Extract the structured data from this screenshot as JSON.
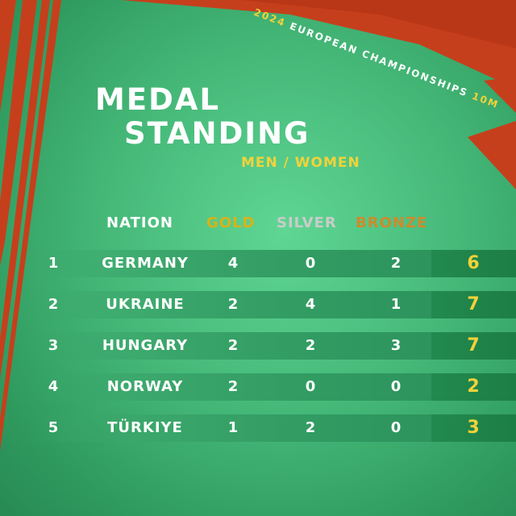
{
  "header": {
    "event": "2024 EUROPEAN CHAMPIONSHIPS",
    "event_year": "2024",
    "event_name": "EUROPEAN CHAMPIONSHIPS",
    "event_discipline": "10M",
    "title_line1": "MEDAL",
    "title_line2": "STANDING",
    "subtitle": "MEN / WOMEN"
  },
  "table": {
    "columns": {
      "nation": "NATION",
      "gold": "GOLD",
      "silver": "SILVER",
      "bronze": "BRONZE"
    },
    "rows": [
      {
        "rank": "1",
        "nation": "GERMANY",
        "gold": "4",
        "silver": "0",
        "bronze": "2",
        "total": "6"
      },
      {
        "rank": "2",
        "nation": "UKRAINE",
        "gold": "2",
        "silver": "4",
        "bronze": "1",
        "total": "7"
      },
      {
        "rank": "3",
        "nation": "HUNGARY",
        "gold": "2",
        "silver": "2",
        "bronze": "3",
        "total": "7"
      },
      {
        "rank": "4",
        "nation": "NORWAY",
        "gold": "2",
        "silver": "0",
        "bronze": "0",
        "total": "2"
      },
      {
        "rank": "5",
        "nation": "TÜRKIYE",
        "gold": "1",
        "silver": "2",
        "bronze": "0",
        "total": "3"
      }
    ]
  },
  "colors": {
    "background": "#45b878",
    "stripe_red": "#c63f1c",
    "gold": "#d8b21a",
    "silver": "#c9ccc9",
    "bronze": "#cf8a2c",
    "total": "#f2d23a"
  }
}
